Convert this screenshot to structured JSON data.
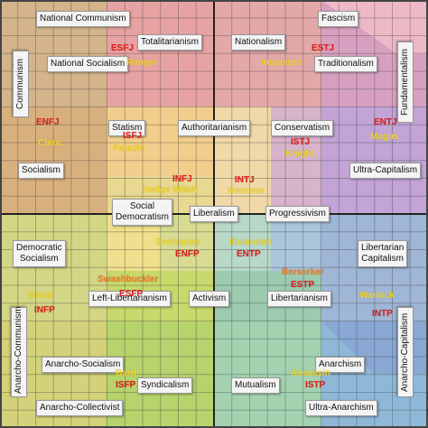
{
  "chart_data": {
    "type": "political-compass",
    "regions": [
      {
        "color": "#d4b48a"
      },
      {
        "color": "#e7a3a3"
      },
      {
        "color": "#e4b3b3"
      },
      {
        "color": "#cfe0b7"
      },
      {
        "color": "#f0ce8e"
      },
      {
        "color": "#e8d58f"
      },
      {
        "color": "#bfd38f"
      },
      {
        "color": "#cfd86a"
      },
      {
        "color": "#b6e0b0"
      },
      {
        "color": "#b8b8d8"
      },
      {
        "color": "#9ec6b2"
      },
      {
        "color": "#ded9cc"
      },
      {
        "color": "#b2dff0"
      },
      {
        "color": "#c89ad0"
      },
      {
        "color": "#cfcfcf"
      },
      {
        "color": "#7fa3cf"
      },
      {
        "color": "#a8c86b"
      },
      {
        "color": "#d9b98a"
      },
      {
        "color": "#e8b0b0"
      },
      {
        "color": "#c8b8de"
      },
      {
        "color": "#e5b8c4"
      },
      {
        "color": "#94c4b4"
      },
      {
        "color": "#8cb2d2"
      },
      {
        "color": "#8cb8a6"
      }
    ],
    "labels": [
      {
        "text": "National Communism"
      },
      {
        "text": "Fascism"
      },
      {
        "text": "Totalitarianism"
      },
      {
        "text": "Nationalism"
      },
      {
        "text": "National Socialism"
      },
      {
        "text": "Traditionalism"
      },
      {
        "text": "Communism"
      },
      {
        "text": "Fundamentalism"
      },
      {
        "text": "Statism"
      },
      {
        "text": "Authoritarianism"
      },
      {
        "text": "Conservatism"
      },
      {
        "text": "Socialism"
      },
      {
        "text": "Ultra-Capitalism"
      },
      {
        "text": "Social\nDemocratism"
      },
      {
        "text": "Liberalism"
      },
      {
        "text": "Progressivism"
      },
      {
        "text": "Democratic\nSocialism"
      },
      {
        "text": "Libertarian\nCapitalism"
      },
      {
        "text": "Left-Libertarianism"
      },
      {
        "text": "Activism"
      },
      {
        "text": "Libertarianism"
      },
      {
        "text": "Anarcho-Communism"
      },
      {
        "text": "Anarcho-Capitalism"
      },
      {
        "text": "Anarcho-Socialism"
      },
      {
        "text": "Anarchism"
      },
      {
        "text": "Syndicalism"
      },
      {
        "text": "Mutualism"
      },
      {
        "text": "Anarcho-Collectivist"
      },
      {
        "text": "Ultra-Anarchism"
      }
    ],
    "types": [
      {
        "text": "ESFJ",
        "color": "#e0201c"
      },
      {
        "text": "Ranger",
        "color": "#f2d82a"
      },
      {
        "text": "ESTJ",
        "color": "#e0201c"
      },
      {
        "text": "Inquisitor",
        "color": "#f2d82a"
      },
      {
        "text": "ENFJ",
        "color": "#e0201c"
      },
      {
        "text": "Cleric",
        "color": "#f2d82a"
      },
      {
        "text": "ISFJ",
        "color": "#e0201c"
      },
      {
        "text": "Paladin",
        "color": "#f2d82a"
      },
      {
        "text": "ISTJ",
        "color": "#e0201c"
      },
      {
        "text": "Knight",
        "color": "#f2d82a"
      },
      {
        "text": "ENTJ",
        "color": "#e0201c"
      },
      {
        "text": "Magus",
        "color": "#f2d82a"
      },
      {
        "text": "INFJ",
        "color": "#e0201c"
      },
      {
        "text": "Hedge Witch",
        "color": "#f2d82a"
      },
      {
        "text": "INTJ",
        "color": "#e0201c"
      },
      {
        "text": "Sorcerer",
        "color": "#f2d82a"
      },
      {
        "text": "Enchanter",
        "color": "#f2d82a"
      },
      {
        "text": "ENFP",
        "color": "#e0201c"
      },
      {
        "text": "Illusionist",
        "color": "#f2d82a"
      },
      {
        "text": "ENTP",
        "color": "#e0201c"
      },
      {
        "text": "Swashbuckler",
        "color": "#f07a2a"
      },
      {
        "text": "ESFP",
        "color": "#e0201c"
      },
      {
        "text": "Berserker",
        "color": "#f07a2a"
      },
      {
        "text": "ESTP",
        "color": "#e0201c"
      },
      {
        "text": "Druid",
        "color": "#f2d82a"
      },
      {
        "text": "INFP",
        "color": "#e0201c"
      },
      {
        "text": "Warlock",
        "color": "#f2d82a"
      },
      {
        "text": "INTP",
        "color": "#e0201c"
      },
      {
        "text": "Bard",
        "color": "#f2d82a"
      },
      {
        "text": "ISFP",
        "color": "#e0201c"
      },
      {
        "text": "Assassin",
        "color": "#f2d82a"
      },
      {
        "text": "ISTP",
        "color": "#e0201c"
      }
    ],
    "grid": true
  }
}
